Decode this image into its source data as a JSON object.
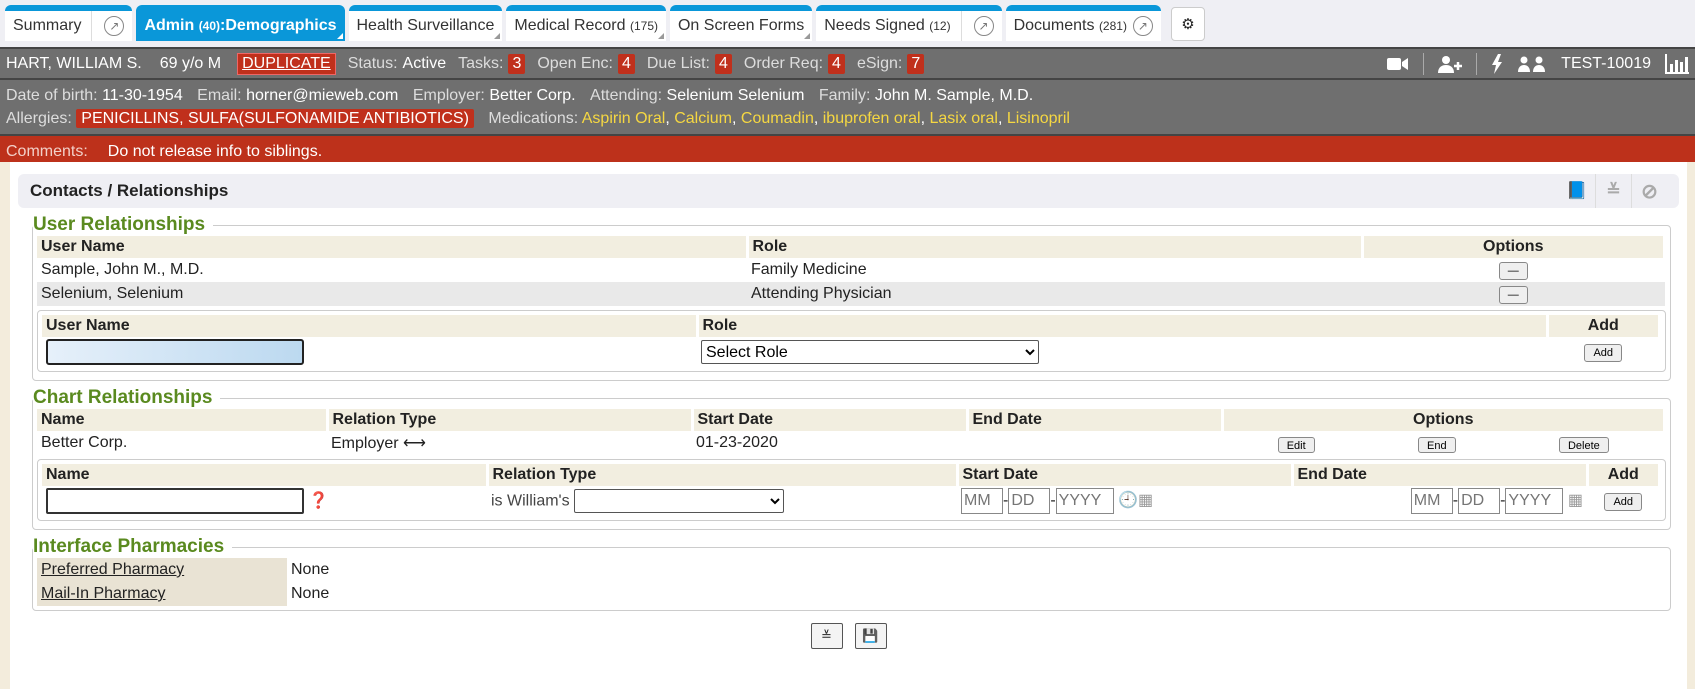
{
  "tabs": [
    {
      "label": "Summary",
      "ext": true
    },
    {
      "label": "Admin",
      "count": "(40)",
      "suffix": ":Demographics",
      "active": true
    },
    {
      "label": "Health Surveillance"
    },
    {
      "label": "Medical Record",
      "count": "(175)"
    },
    {
      "label": "On Screen Forms"
    },
    {
      "label": "Needs Signed",
      "count": "(12)",
      "ext": true
    },
    {
      "label": "Documents",
      "count": "(281)",
      "ext": true
    }
  ],
  "patient": {
    "name": "HART, WILLIAM S.",
    "age": "69 y/o M",
    "flag": "DUPLICATE",
    "status_label": "Status:",
    "status": "Active",
    "counters": [
      {
        "label": "Tasks:",
        "value": "3"
      },
      {
        "label": "Open Enc:",
        "value": "4"
      },
      {
        "label": "Due List:",
        "value": "4"
      },
      {
        "label": "Order Req:",
        "value": "4"
      },
      {
        "label": "eSign:",
        "value": "7"
      }
    ],
    "chart_id": "TEST-10019",
    "icons": [
      "video-camera-icon",
      "add-user-icon",
      "lightning-icon",
      "users-icon",
      "bar-chart-icon"
    ]
  },
  "info": {
    "dob_label": "Date of birth:",
    "dob": "11-30-1954",
    "email_label": "Email:",
    "email": "horner@mieweb.com",
    "employer_label": "Employer:",
    "employer": "Better Corp.",
    "attending_label": "Attending:",
    "attending": "Selenium Selenium",
    "family_label": "Family:",
    "family": "John M. Sample, M.D.",
    "allergies_label": "Allergies:",
    "allergies": "PENICILLINS, SULFA(SULFONAMIDE ANTIBIOTICS)",
    "medications_label": "Medications:",
    "medications": [
      "Aspirin Oral",
      "Calcium",
      "Coumadin",
      "ibuprofen oral",
      "Lasix oral",
      "Lisinopril"
    ]
  },
  "comments": {
    "label": "Comments:",
    "text": "Do not release info to siblings."
  },
  "panel": {
    "title": "Contacts / Relationships"
  },
  "user_rel": {
    "title": "User Relationships",
    "headers": [
      "User Name",
      "Role",
      "Options"
    ],
    "rows": [
      {
        "name": "Sample, John M., M.D.",
        "role": "Family Medicine",
        "option": "—"
      },
      {
        "name": "Selenium, Selenium",
        "role": "Attending Physician",
        "option": "—"
      }
    ],
    "add_headers": [
      "User Name",
      "Role",
      "Add"
    ],
    "role_select": "Select Role",
    "add_button": "Add"
  },
  "chart_rel": {
    "title": "Chart Relationships",
    "headers": [
      "Name",
      "Relation Type",
      "Start Date",
      "End Date",
      "Options"
    ],
    "rows": [
      {
        "name": "Better Corp.",
        "type": "Employer",
        "start": "01-23-2020",
        "end": ""
      }
    ],
    "buttons": [
      "Edit",
      "End",
      "Delete"
    ],
    "add_headers": [
      "Name",
      "Relation Type",
      "Start Date",
      "End Date",
      "Add"
    ],
    "relation_prefix": "is William's",
    "date_placeholders": [
      "MM",
      "DD",
      "YYYY"
    ],
    "add_button": "Add"
  },
  "pharmacies": {
    "title": "Interface Pharmacies",
    "rows": [
      {
        "label": "Preferred Pharmacy",
        "value": "None"
      },
      {
        "label": "Mail-In Pharmacy",
        "value": "None"
      }
    ]
  },
  "colors": {
    "accent": "#0a97d9",
    "alert": "#c0301c",
    "legend": "#5a8a1f",
    "medication": "#f5d742"
  }
}
